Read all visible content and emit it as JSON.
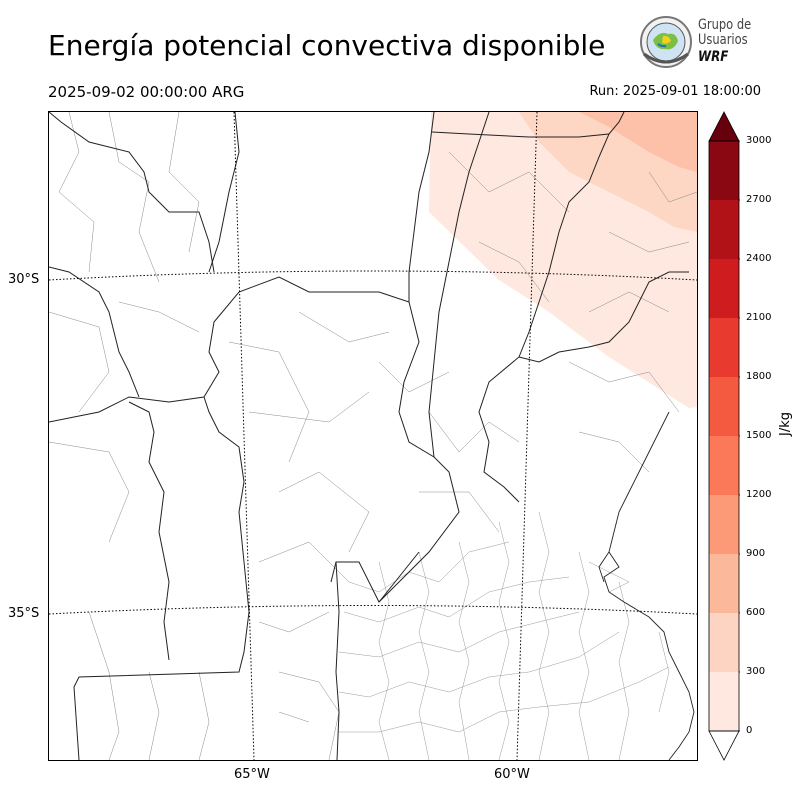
{
  "title": "Energía potencial convectiva disponible",
  "valid_time": "2025-09-02 00:00:00 ARG",
  "run_time": "Run: 2025-09-01 18:00:00",
  "logo": {
    "line1": "Grupo de",
    "line2": "Usuarios",
    "line3": "WRF"
  },
  "axes": {
    "lat_labels": [
      "30°S",
      "35°S"
    ],
    "lon_labels": [
      "65°W",
      "60°W"
    ]
  },
  "colorbar": {
    "unit": "J/kg",
    "ticks": [
      "0",
      "300",
      "600",
      "900",
      "1200",
      "1500",
      "1800",
      "2100",
      "2400",
      "2700",
      "3000"
    ],
    "colors": [
      "#fee8df",
      "#fdd3c1",
      "#fcb89b",
      "#fc9a78",
      "#fb7858",
      "#f45a40",
      "#e83a2f",
      "#cf1d1f",
      "#b01218",
      "#8a0812"
    ],
    "over_color": "#67000d"
  },
  "cape_field_color": "#fee8df",
  "cape_field_color2": "#fdd6c4"
}
